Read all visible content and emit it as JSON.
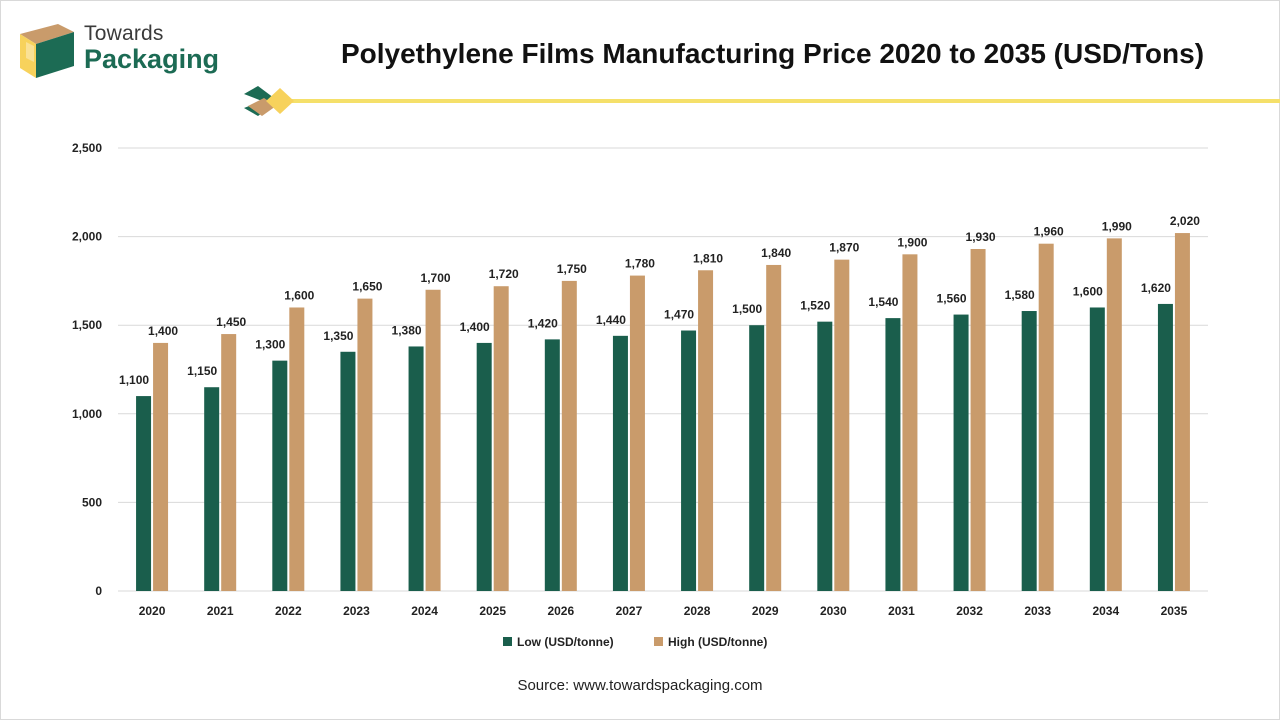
{
  "brand": {
    "line1": "Towards",
    "line2": "Packaging"
  },
  "colors": {
    "low": "#1a5e4c",
    "high": "#c99b6b",
    "accent_line": "#f5e06a",
    "grid": "#d9d9d9"
  },
  "source_text": "Source: www.towardspackaging.com",
  "chart_data": {
    "type": "bar",
    "title": "Polyethylene Films Manufacturing Price 2020 to 2035 (USD/Tons)",
    "categories": [
      "2020",
      "2021",
      "2022",
      "2023",
      "2024",
      "2025",
      "2026",
      "2027",
      "2028",
      "2029",
      "2030",
      "2031",
      "2032",
      "2033",
      "2034",
      "2035"
    ],
    "series": [
      {
        "name": "Low (USD/tonne)",
        "color": "#1a5e4c",
        "values": [
          1100,
          1150,
          1300,
          1350,
          1380,
          1400,
          1420,
          1440,
          1470,
          1500,
          1520,
          1540,
          1560,
          1580,
          1600,
          1620
        ],
        "labels": [
          "1,100",
          "1,150",
          "1,300",
          "1,350",
          "1,380",
          "1,400",
          "1,420",
          "1,440",
          "1,470",
          "1,500",
          "1,520",
          "1,540",
          "1,560",
          "1,580",
          "1,600",
          "1,620"
        ]
      },
      {
        "name": "High (USD/tonne)",
        "color": "#c99b6b",
        "values": [
          1400,
          1450,
          1600,
          1650,
          1700,
          1720,
          1750,
          1780,
          1810,
          1840,
          1870,
          1900,
          1930,
          1960,
          1990,
          2020
        ],
        "labels": [
          "1,400",
          "1,450",
          "1,600",
          "1,650",
          "1,700",
          "1,720",
          "1,750",
          "1,780",
          "1,810",
          "1,840",
          "1,870",
          "1,900",
          "1,930",
          "1,960",
          "1,990",
          "2,020"
        ]
      }
    ],
    "ylim": [
      0,
      2500
    ],
    "yticks": [
      0,
      500,
      1000,
      1500,
      2000,
      2500
    ],
    "ytick_labels": [
      "0",
      "500",
      "1,000",
      "1,500",
      "2,000",
      "2,500"
    ],
    "grid": true,
    "legend_position": "bottom"
  }
}
